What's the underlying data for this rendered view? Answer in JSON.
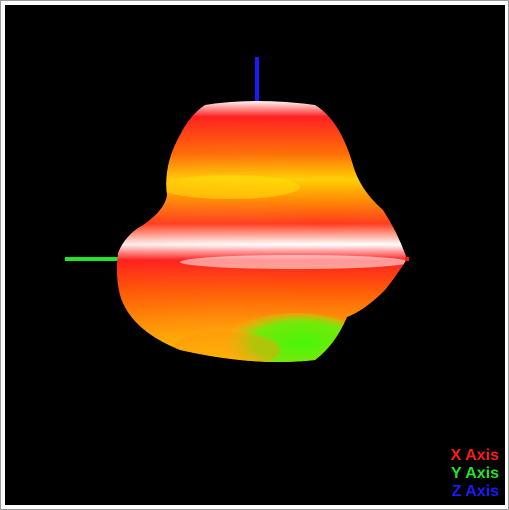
{
  "viewer": {
    "background_color": "#000000",
    "legend": [
      {
        "label": "X Axis",
        "color": "#ff1a1a"
      },
      {
        "label": "Y Axis",
        "color": "#22e622"
      },
      {
        "label": "Z Axis",
        "color": "#1a1aff"
      }
    ],
    "axis_colors": {
      "x": "#ff1a1a",
      "y": "#22e622",
      "z": "#1a1aff"
    },
    "surface_colormap": [
      "#ffffff",
      "#ff1a1a",
      "#ff7a00",
      "#ffd400",
      "#33ff00"
    ]
  }
}
